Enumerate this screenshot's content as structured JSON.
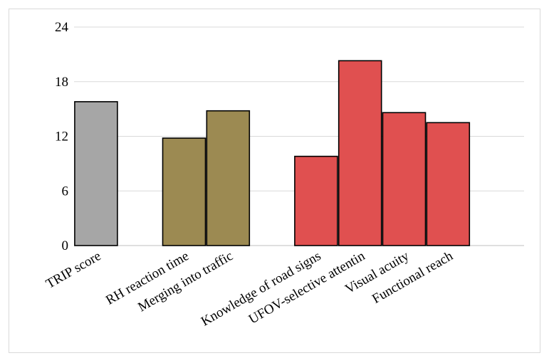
{
  "chart_data": {
    "type": "bar",
    "categories": [
      "TRIP  score",
      "RH reaction time",
      "Merging into traffic",
      "Knowledge of road signs",
      "UFOV-selective attentin",
      "Visual acuity",
      "Functional reach"
    ],
    "values": [
      15.8,
      11.8,
      14.8,
      9.8,
      20.3,
      14.6,
      13.5
    ],
    "colors": [
      "#a6a6a6",
      "#9c8a52",
      "#9c8a52",
      "#e05050",
      "#e05050",
      "#e05050",
      "#e05050"
    ],
    "groups": [
      [
        0
      ],
      [
        1,
        2
      ],
      [
        3,
        4,
        5,
        6
      ]
    ],
    "ylim": [
      0,
      24
    ],
    "yticks": [
      0,
      6,
      12,
      18,
      24
    ],
    "grid": true,
    "title": "",
    "xlabel": "",
    "ylabel": ""
  }
}
